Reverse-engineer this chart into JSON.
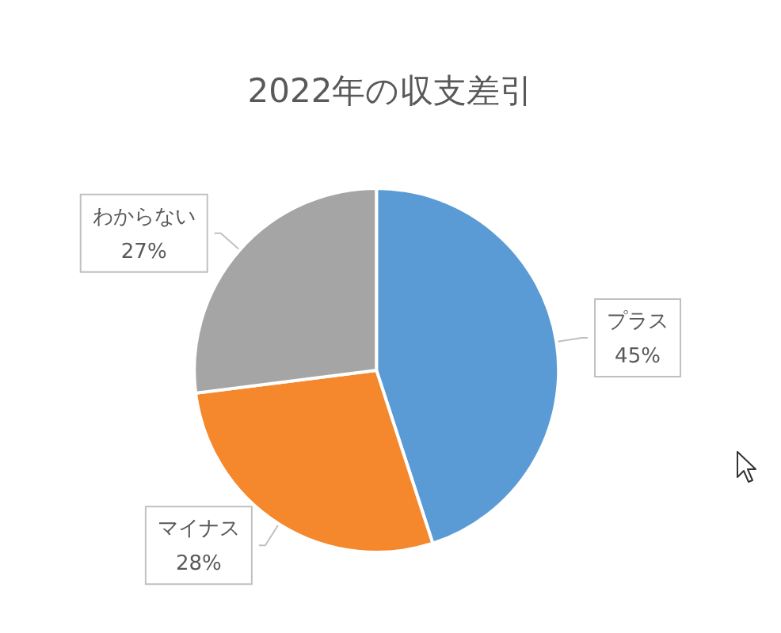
{
  "chart_data": {
    "type": "pie",
    "title": "2022年の収支差引",
    "categories": [
      "プラス",
      "マイナス",
      "わからない"
    ],
    "values": [
      45,
      28,
      27
    ],
    "colors": [
      "#5b9bd5",
      "#f5872c",
      "#a5a5a5"
    ],
    "value_labels": [
      "45%",
      "28%",
      "27%"
    ]
  }
}
